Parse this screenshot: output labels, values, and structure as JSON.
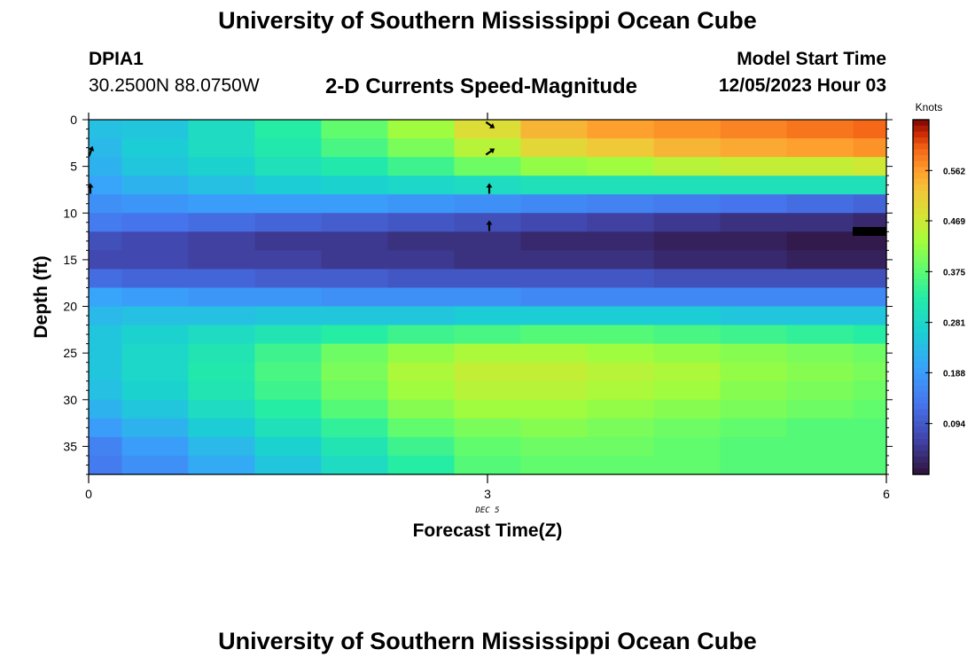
{
  "header": {
    "title": "University of Southern Mississippi Ocean Cube",
    "station_id": "DPIA1",
    "coordinates": "30.2500N  88.0750W",
    "product": "2-D Currents Speed-Magnitude",
    "model_start_label": "Model Start Time",
    "model_start_value": "12/05/2023 Hour 03"
  },
  "footer": {
    "title": "University of Southern Mississippi Ocean Cube"
  },
  "chart_data": {
    "type": "heatmap",
    "title": "2-D Currents Speed-Magnitude",
    "xlabel": "Forecast Time(Z)",
    "ylabel": "Depth (ft)",
    "x_ticks": [
      "0",
      "3",
      "6"
    ],
    "x_date_label": "DEC 5",
    "xlim": [
      0,
      6
    ],
    "y_ticks": [
      "0",
      "5",
      "10",
      "15",
      "20",
      "25",
      "30",
      "35"
    ],
    "ylim": [
      0,
      38
    ],
    "y_inverted": true,
    "colorbar": {
      "label": "Knots",
      "ticks": [
        "0.562",
        "0.469",
        "0.375",
        "0.281",
        "0.188",
        "0.094"
      ],
      "range": [
        0,
        0.656
      ]
    },
    "time_steps": [
      0,
      0.5,
      1,
      1.5,
      2,
      2.5,
      3,
      3.5,
      4,
      4.5,
      5,
      5.5,
      6
    ],
    "depth_levels": [
      0,
      2,
      4,
      6,
      8,
      10,
      12,
      14,
      16,
      18,
      20,
      22,
      24,
      26,
      28,
      30,
      32,
      34,
      36,
      38
    ],
    "speed_knots": [
      [
        0.24,
        0.25,
        0.29,
        0.33,
        0.38,
        0.43,
        0.49,
        0.54,
        0.56,
        0.57,
        0.58,
        0.59,
        0.6
      ],
      [
        0.23,
        0.26,
        0.29,
        0.32,
        0.36,
        0.4,
        0.45,
        0.5,
        0.52,
        0.54,
        0.55,
        0.56,
        0.57
      ],
      [
        0.22,
        0.25,
        0.27,
        0.3,
        0.32,
        0.35,
        0.39,
        0.42,
        0.43,
        0.45,
        0.46,
        0.46,
        0.47
      ],
      [
        0.2,
        0.22,
        0.24,
        0.26,
        0.27,
        0.28,
        0.29,
        0.3,
        0.3,
        0.3,
        0.3,
        0.3,
        0.3
      ],
      [
        0.17,
        0.18,
        0.19,
        0.19,
        0.19,
        0.18,
        0.17,
        0.16,
        0.15,
        0.14,
        0.13,
        0.12,
        0.11
      ],
      [
        0.14,
        0.13,
        0.12,
        0.11,
        0.1,
        0.09,
        0.08,
        0.07,
        0.06,
        0.05,
        0.04,
        0.04,
        0.03
      ],
      [
        0.08,
        0.07,
        0.06,
        0.05,
        0.05,
        0.04,
        0.04,
        0.03,
        0.03,
        0.02,
        0.02,
        0.01,
        0.01
      ],
      [
        0.07,
        0.07,
        0.06,
        0.06,
        0.05,
        0.05,
        0.04,
        0.04,
        0.04,
        0.03,
        0.03,
        0.02,
        0.02
      ],
      [
        0.12,
        0.11,
        0.11,
        0.1,
        0.1,
        0.09,
        0.09,
        0.09,
        0.09,
        0.08,
        0.08,
        0.08,
        0.08
      ],
      [
        0.2,
        0.19,
        0.18,
        0.18,
        0.17,
        0.17,
        0.17,
        0.16,
        0.16,
        0.16,
        0.16,
        0.16,
        0.16
      ],
      [
        0.23,
        0.24,
        0.24,
        0.25,
        0.25,
        0.25,
        0.26,
        0.26,
        0.26,
        0.26,
        0.25,
        0.25,
        0.25
      ],
      [
        0.25,
        0.27,
        0.29,
        0.31,
        0.33,
        0.35,
        0.36,
        0.37,
        0.37,
        0.36,
        0.35,
        0.34,
        0.33
      ],
      [
        0.25,
        0.28,
        0.31,
        0.35,
        0.39,
        0.42,
        0.44,
        0.44,
        0.43,
        0.42,
        0.41,
        0.4,
        0.39
      ],
      [
        0.25,
        0.28,
        0.32,
        0.36,
        0.4,
        0.44,
        0.46,
        0.46,
        0.45,
        0.44,
        0.42,
        0.41,
        0.4
      ],
      [
        0.24,
        0.27,
        0.31,
        0.35,
        0.39,
        0.43,
        0.45,
        0.45,
        0.44,
        0.43,
        0.41,
        0.4,
        0.39
      ],
      [
        0.22,
        0.25,
        0.29,
        0.33,
        0.37,
        0.41,
        0.43,
        0.43,
        0.42,
        0.41,
        0.4,
        0.39,
        0.38
      ],
      [
        0.19,
        0.22,
        0.26,
        0.3,
        0.34,
        0.38,
        0.4,
        0.41,
        0.4,
        0.39,
        0.38,
        0.37,
        0.37
      ],
      [
        0.15,
        0.19,
        0.23,
        0.27,
        0.31,
        0.35,
        0.38,
        0.39,
        0.39,
        0.38,
        0.37,
        0.37,
        0.37
      ],
      [
        0.14,
        0.17,
        0.21,
        0.25,
        0.29,
        0.33,
        0.37,
        0.38,
        0.38,
        0.38,
        0.37,
        0.37,
        0.37
      ],
      [
        0.13,
        0.17,
        0.21,
        0.25,
        0.29,
        0.34,
        0.39,
        0.4,
        0.41,
        0.41,
        0.41,
        0.41,
        0.41
      ]
    ],
    "current_vectors": [
      {
        "time": 0,
        "depth": 3.5,
        "direction": "north-northeast"
      },
      {
        "time": 0,
        "depth": 7.5,
        "direction": "north"
      },
      {
        "time": 3,
        "depth": 0.5,
        "direction": "southeast"
      },
      {
        "time": 3,
        "depth": 3.5,
        "direction": "northeast"
      },
      {
        "time": 3,
        "depth": 7.5,
        "direction": "north"
      },
      {
        "time": 3,
        "depth": 11.5,
        "direction": "north"
      }
    ]
  }
}
